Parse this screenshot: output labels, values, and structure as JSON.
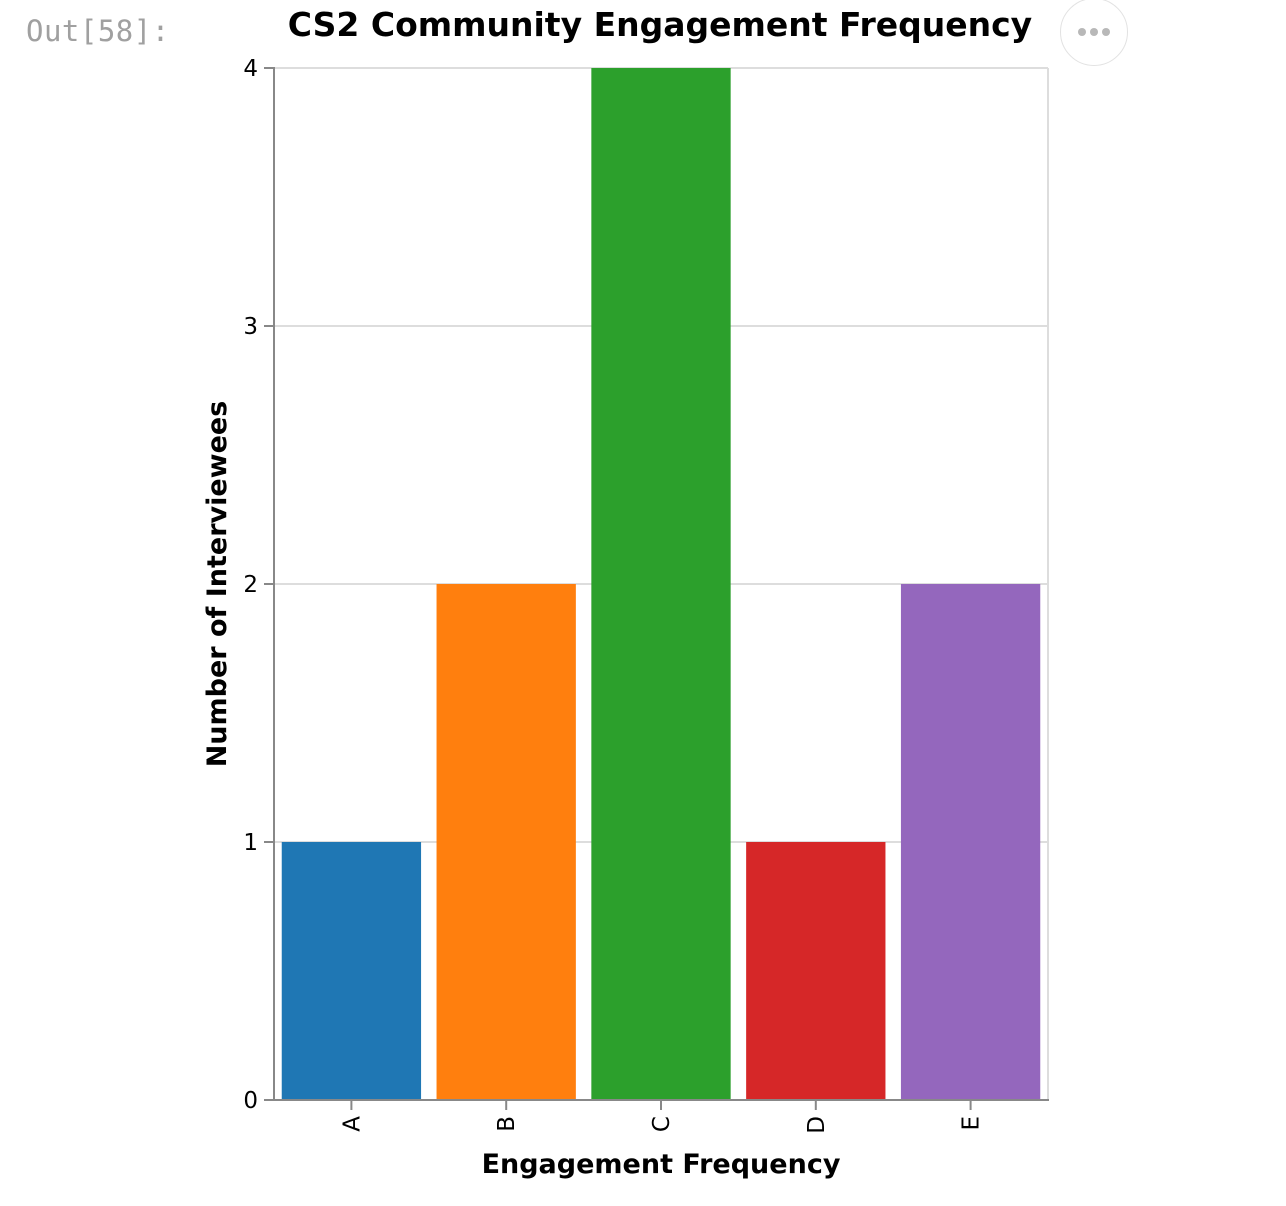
{
  "cell": {
    "prompt": "Out[58]:"
  },
  "actions_menu": {
    "icon": "ellipsis-icon"
  },
  "chart_data": {
    "type": "bar",
    "title": "CS2 Community Engagement Frequency",
    "xlabel": "Engagement Frequency",
    "ylabel": "Number of Interviewees",
    "categories": [
      "A",
      "B",
      "C",
      "D",
      "E"
    ],
    "values": [
      1,
      2,
      4,
      1,
      2
    ],
    "colors": [
      "#1f77b4",
      "#ff7f0e",
      "#2ca02c",
      "#d62728",
      "#9467bd"
    ],
    "ylim": [
      0,
      4
    ],
    "yticks": [
      0,
      1,
      2,
      3,
      4
    ],
    "grid": true,
    "legend": "none"
  }
}
